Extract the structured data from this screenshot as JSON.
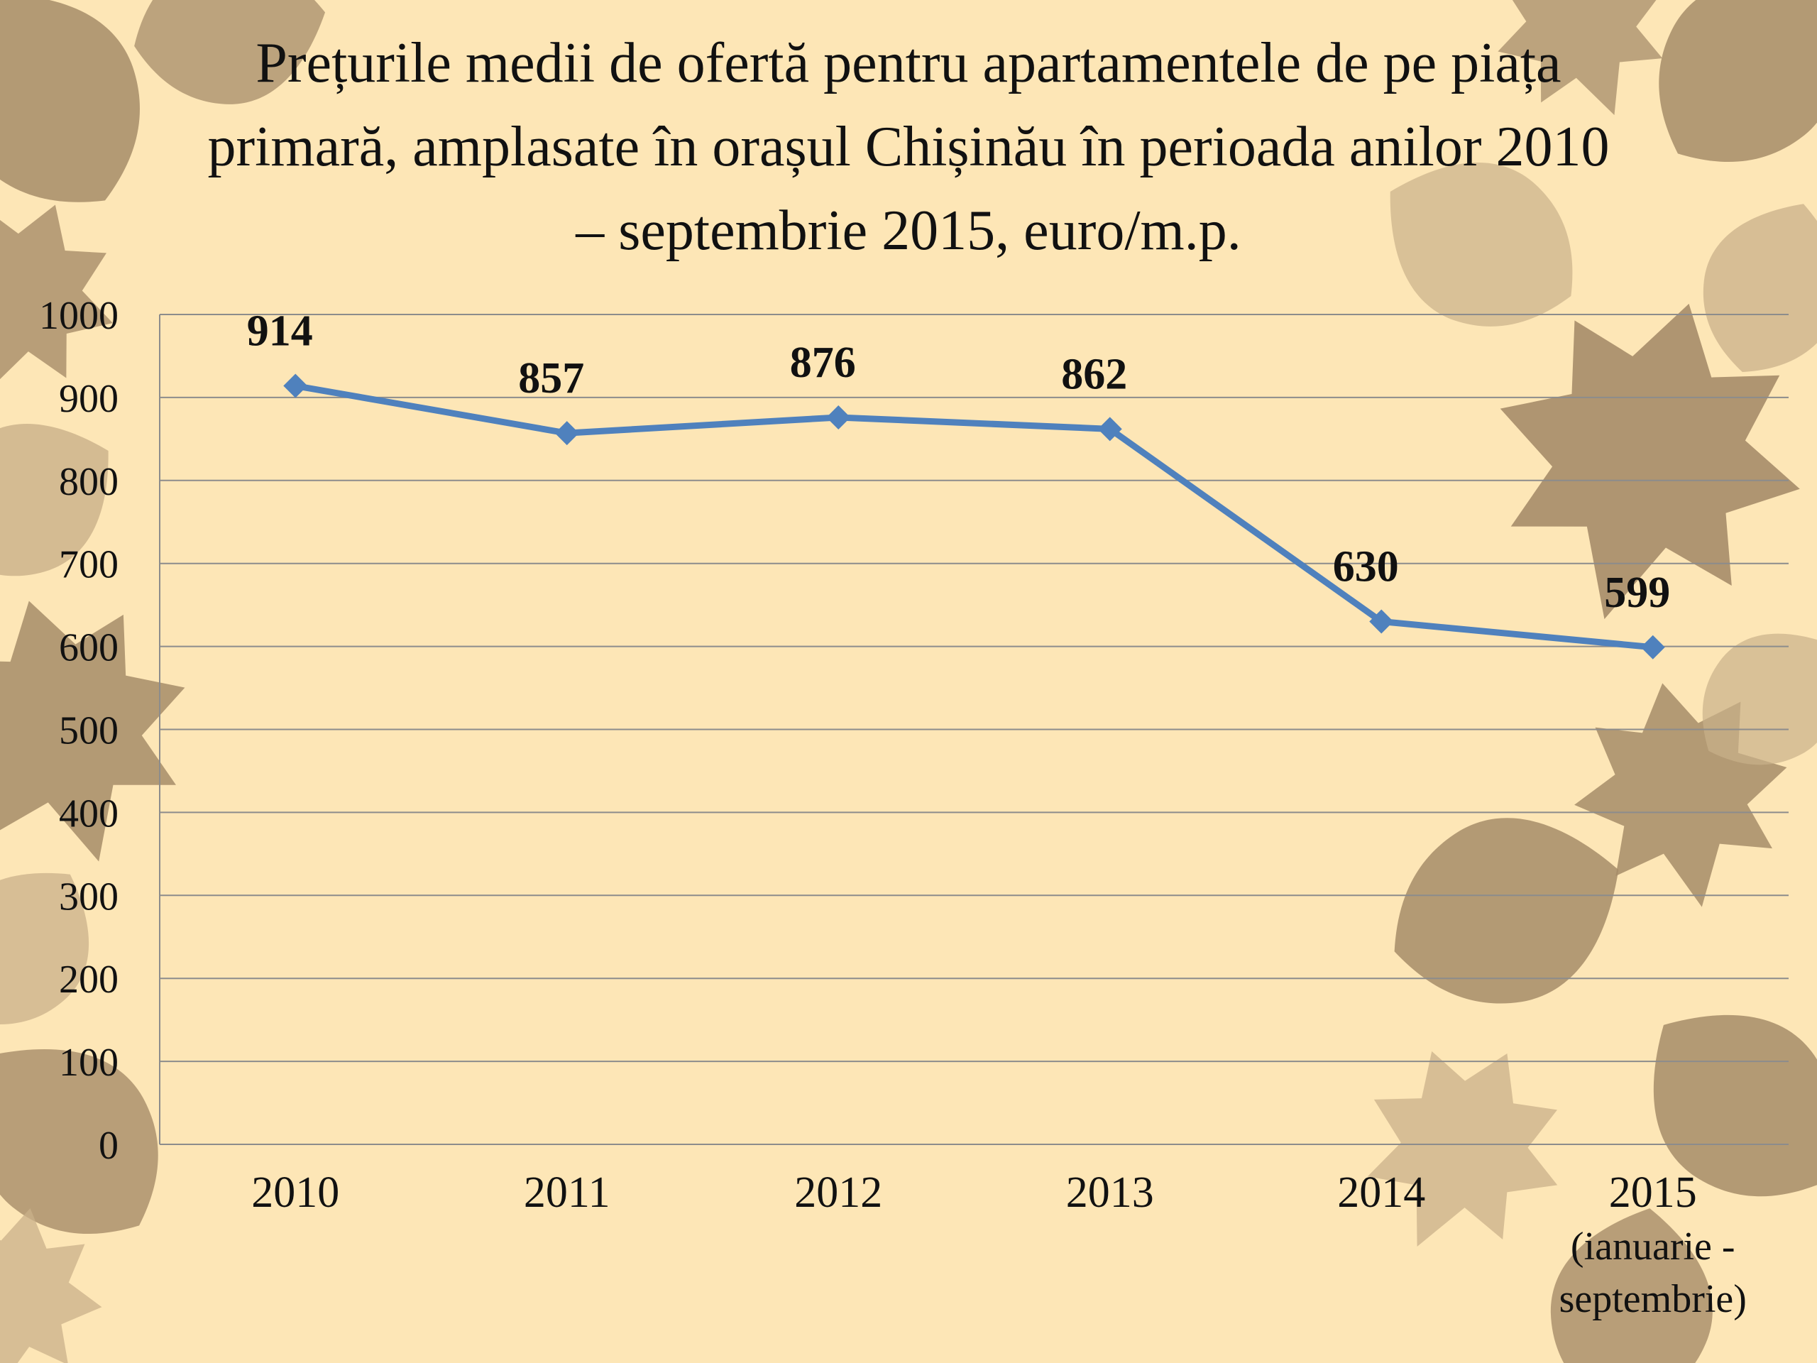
{
  "title_lines": [
    "Prețurile medii de ofertă pentru apartamentele de pe piața",
    "primară, amplasate în orașul Chișinău în perioada anilor 2010",
    "– septembrie 2015, euro/m.p."
  ],
  "colors": {
    "background": "#fde6b6",
    "leaf_dark": "#a68c69",
    "leaf_light": "#c9b08a",
    "series": "#4f81bd",
    "gridline": "#8c8c8c",
    "text": "#111111"
  },
  "chart_data": {
    "type": "line",
    "title": "Prețurile medii de ofertă pentru apartamentele de pe piața primară, amplasate în orașul Chișinău în perioada anilor 2010 – septembrie 2015, euro/m.p.",
    "categories": [
      [
        "2010"
      ],
      [
        "2011"
      ],
      [
        "2012"
      ],
      [
        "2013"
      ],
      [
        "2014"
      ],
      [
        "2015",
        "(ianuarie -",
        "septembrie)"
      ]
    ],
    "series": [
      {
        "values": [
          914,
          857,
          876,
          862,
          630,
          599
        ]
      }
    ],
    "ylim": [
      0,
      1000
    ],
    "yticks": [
      0,
      100,
      200,
      300,
      400,
      500,
      600,
      700,
      800,
      900,
      1000
    ],
    "grid": true,
    "data_labels": true,
    "marker": "diamond",
    "xlabel": "",
    "ylabel": ""
  }
}
